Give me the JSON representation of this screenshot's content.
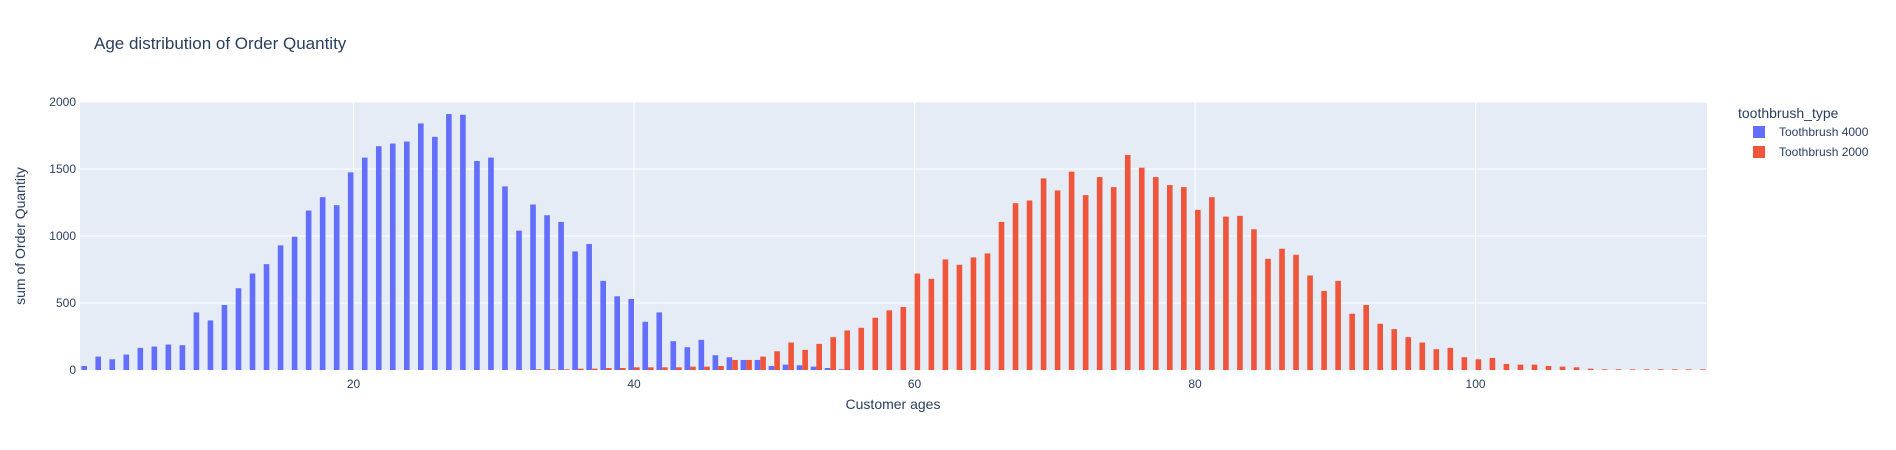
{
  "chart_data": {
    "type": "bar",
    "title": "Age distribution of Order Quantity",
    "xlabel": "Customer ages",
    "ylabel": "sum of Order Quantity",
    "xlim": [
      0.5,
      116.5
    ],
    "ylim": [
      0,
      2000
    ],
    "x_ticks": [
      20,
      40,
      60,
      80,
      100
    ],
    "y_ticks": [
      0,
      500,
      1000,
      1500,
      2000
    ],
    "grid": true,
    "barmode": "group",
    "legend_title": "toothbrush_type",
    "legend_position": "right",
    "series": [
      {
        "name": "Toothbrush 4000",
        "color": "#636efa",
        "x": [
          1,
          2,
          3,
          4,
          5,
          6,
          7,
          8,
          9,
          10,
          11,
          12,
          13,
          14,
          15,
          16,
          17,
          18,
          19,
          20,
          21,
          22,
          23,
          24,
          25,
          26,
          27,
          28,
          29,
          30,
          31,
          32,
          33,
          34,
          35,
          36,
          37,
          38,
          39,
          40,
          41,
          42,
          43,
          44,
          45,
          46,
          47,
          48,
          49,
          50,
          51,
          52,
          53,
          54,
          55
        ],
        "values": [
          30,
          100,
          80,
          115,
          165,
          175,
          190,
          185,
          430,
          370,
          485,
          610,
          720,
          790,
          930,
          995,
          1190,
          1290,
          1230,
          1475,
          1585,
          1670,
          1690,
          1705,
          1840,
          1740,
          1910,
          1905,
          1560,
          1585,
          1370,
          1040,
          1235,
          1155,
          1105,
          885,
          940,
          665,
          550,
          530,
          360,
          430,
          215,
          170,
          225,
          110,
          95,
          75,
          75,
          30,
          40,
          35,
          25,
          15,
          5
        ]
      },
      {
        "name": "Toothbrush 2000",
        "color": "#ef553b",
        "x": [
          33,
          34,
          35,
          36,
          37,
          38,
          39,
          40,
          41,
          42,
          43,
          44,
          45,
          46,
          47,
          48,
          49,
          50,
          51,
          52,
          53,
          54,
          55,
          56,
          57,
          58,
          59,
          60,
          61,
          62,
          63,
          64,
          65,
          66,
          67,
          68,
          69,
          70,
          71,
          72,
          73,
          74,
          75,
          76,
          77,
          78,
          79,
          80,
          81,
          82,
          83,
          84,
          85,
          86,
          87,
          88,
          89,
          90,
          91,
          92,
          93,
          94,
          95,
          96,
          97,
          98,
          99,
          100,
          101,
          102,
          103,
          104,
          105,
          106,
          107,
          108,
          109,
          110,
          111,
          112,
          113,
          114,
          115,
          116
        ],
        "values": [
          5,
          5,
          5,
          10,
          10,
          15,
          15,
          20,
          20,
          20,
          20,
          25,
          25,
          30,
          75,
          75,
          100,
          140,
          205,
          150,
          195,
          245,
          295,
          315,
          390,
          445,
          470,
          720,
          680,
          825,
          785,
          840,
          870,
          1105,
          1245,
          1265,
          1430,
          1340,
          1480,
          1305,
          1440,
          1365,
          1605,
          1510,
          1440,
          1380,
          1365,
          1195,
          1290,
          1145,
          1150,
          1050,
          830,
          905,
          860,
          705,
          590,
          665,
          420,
          485,
          345,
          305,
          245,
          205,
          155,
          165,
          95,
          80,
          90,
          45,
          40,
          40,
          30,
          25,
          20,
          10,
          5,
          5,
          5,
          5,
          5,
          5,
          5,
          5
        ]
      }
    ]
  }
}
